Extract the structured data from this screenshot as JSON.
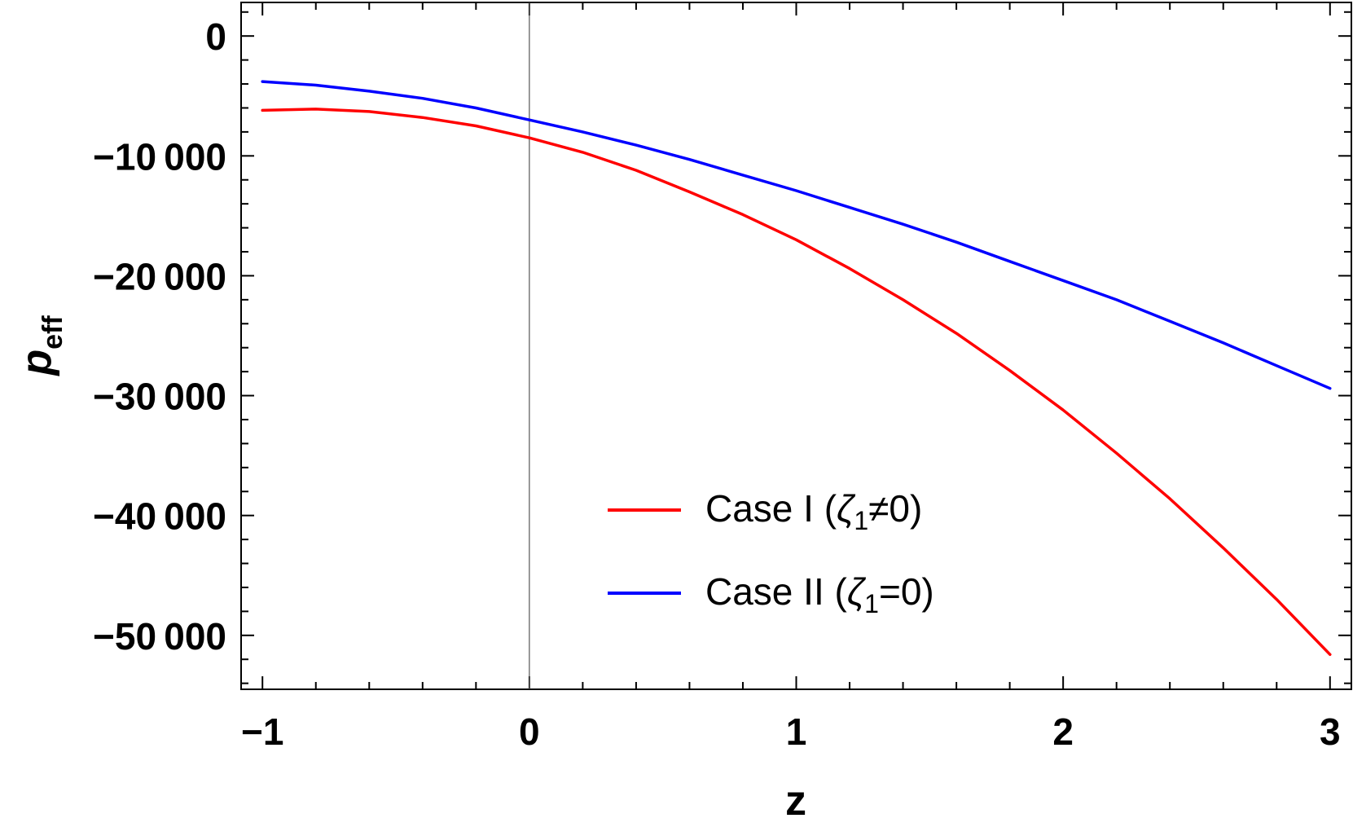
{
  "chart_data": {
    "type": "line",
    "xlabel": "z",
    "ylabel": "p",
    "ylabel_sub": "eff",
    "xlim": [
      -1.08,
      3.08
    ],
    "ylim": [
      -54500,
      2800
    ],
    "x_ticks": [
      -1,
      0,
      1,
      2,
      3
    ],
    "x_tick_labels": [
      "−1",
      "0",
      "1",
      "2",
      "3"
    ],
    "y_ticks": [
      0,
      -10000,
      -20000,
      -30000,
      -40000,
      -50000
    ],
    "y_tick_labels": [
      "0",
      "−10 000",
      "−20 000",
      "−30 000",
      "−40 000",
      "−50 000"
    ],
    "x_minor_step": 0.2,
    "y_minor_step": 2000,
    "grid": false,
    "vertical_reference_line_x": 0,
    "legend_position": "lower-center",
    "series": [
      {
        "name": "Case I",
        "legend_label": {
          "prefix": "Case I (",
          "symbol": "ζ",
          "sub": "1",
          "suffix": "≠0)"
        },
        "color": "#ff0000",
        "x": [
          -1,
          -0.8,
          -0.6,
          -0.4,
          -0.2,
          0,
          0.2,
          0.4,
          0.6,
          0.8,
          1,
          1.2,
          1.4,
          1.6,
          1.8,
          2,
          2.2,
          2.4,
          2.6,
          2.8,
          3
        ],
        "y": [
          -6200,
          -6100,
          -6300,
          -6800,
          -7500,
          -8500,
          -9700,
          -11200,
          -13000,
          -14900,
          -17000,
          -19400,
          -22000,
          -24800,
          -27900,
          -31200,
          -34800,
          -38600,
          -42700,
          -47000,
          -51600
        ]
      },
      {
        "name": "Case II",
        "legend_label": {
          "prefix": "Case II (",
          "symbol": "ζ",
          "sub": "1",
          "suffix": "=0)"
        },
        "color": "#0000ff",
        "x": [
          -1,
          -0.8,
          -0.6,
          -0.4,
          -0.2,
          0,
          0.2,
          0.4,
          0.6,
          0.8,
          1,
          1.2,
          1.4,
          1.6,
          1.8,
          2,
          2.2,
          2.4,
          2.6,
          2.8,
          3
        ],
        "y": [
          -3800,
          -4100,
          -4600,
          -5200,
          -6000,
          -7000,
          -8000,
          -9100,
          -10300,
          -11600,
          -12900,
          -14300,
          -15700,
          -17200,
          -18800,
          -20400,
          -22000,
          -23800,
          -25600,
          -27500,
          -29400
        ]
      }
    ]
  }
}
